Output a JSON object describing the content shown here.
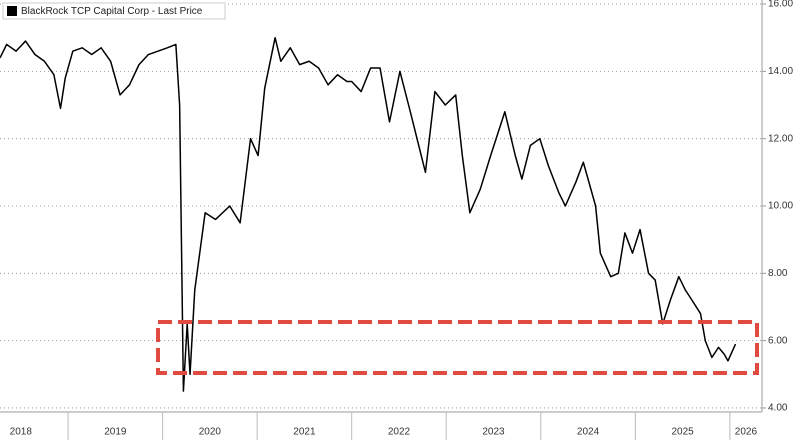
{
  "chart_data": {
    "type": "line",
    "legend": "BlackRock TCP Capital Corp - Last Price",
    "legend_position": "upper left",
    "grid": true,
    "y_axis_side": "right",
    "xlim": [
      2018.28,
      2026.34
    ],
    "ylim": [
      3.88,
      16.12
    ],
    "xticks": [
      {
        "value": 2018.5,
        "label": "2018"
      },
      {
        "value": 2019.5,
        "label": "2019"
      },
      {
        "value": 2020.5,
        "label": "2020"
      },
      {
        "value": 2021.5,
        "label": "2021"
      },
      {
        "value": 2022.5,
        "label": "2022"
      },
      {
        "value": 2023.5,
        "label": "2023"
      },
      {
        "value": 2024.5,
        "label": "2024"
      },
      {
        "value": 2025.5,
        "label": "2025"
      },
      {
        "value": 2026.17,
        "label": "2026"
      }
    ],
    "yticks": [
      {
        "value": 4,
        "label": "4.00"
      },
      {
        "value": 6,
        "label": "6.00"
      },
      {
        "value": 8,
        "label": "8.00"
      },
      {
        "value": 10,
        "label": "10.00"
      },
      {
        "value": 12,
        "label": "12.00"
      },
      {
        "value": 14,
        "label": "14.00"
      },
      {
        "value": 16,
        "label": "16.00"
      }
    ],
    "series": [
      {
        "name": "BlackRock TCP Capital Corp - Last Price",
        "color": "#000000",
        "x": [
          2018.28,
          2018.35,
          2018.45,
          2018.55,
          2018.65,
          2018.75,
          2018.85,
          2018.92,
          2018.97,
          2019.05,
          2019.15,
          2019.25,
          2019.35,
          2019.45,
          2019.55,
          2019.65,
          2019.75,
          2019.85,
          2019.95,
          2020.05,
          2020.14,
          2020.18,
          2020.22,
          2020.26,
          2020.29,
          2020.34,
          2020.45,
          2020.56,
          2020.71,
          2020.82,
          2020.93,
          2021.01,
          2021.08,
          2021.19,
          2021.25,
          2021.35,
          2021.45,
          2021.55,
          2021.65,
          2021.75,
          2021.85,
          2021.95,
          2022.0,
          2022.1,
          2022.2,
          2022.3,
          2022.4,
          2022.51,
          2022.62,
          2022.78,
          2022.88,
          2022.99,
          2023.1,
          2023.17,
          2023.25,
          2023.36,
          2023.47,
          2023.62,
          2023.73,
          2023.8,
          2023.89,
          2023.99,
          2024.08,
          2024.19,
          2024.26,
          2024.37,
          2024.45,
          2024.58,
          2024.63,
          2024.74,
          2024.82,
          2024.89,
          2024.97,
          2025.05,
          2025.14,
          2025.21,
          2025.29,
          2025.37,
          2025.46,
          2025.53,
          2025.6,
          2025.69,
          2025.74,
          2025.81,
          2025.88,
          2025.94,
          2025.98,
          2026.06
        ],
        "values": [
          14.4,
          14.8,
          14.6,
          14.9,
          14.5,
          14.3,
          13.9,
          12.9,
          13.8,
          14.6,
          14.7,
          14.5,
          14.7,
          14.3,
          13.3,
          13.6,
          14.2,
          14.5,
          14.6,
          14.7,
          14.8,
          13.0,
          4.5,
          6.5,
          5.0,
          7.5,
          9.8,
          9.6,
          10.0,
          9.5,
          12.0,
          11.5,
          13.5,
          15.0,
          14.3,
          14.7,
          14.2,
          14.3,
          14.1,
          13.6,
          13.9,
          13.7,
          13.7,
          13.4,
          14.1,
          14.1,
          12.5,
          14.0,
          12.8,
          11.0,
          13.4,
          13.0,
          13.3,
          11.5,
          9.8,
          10.5,
          11.5,
          12.8,
          11.5,
          10.8,
          11.8,
          12.0,
          11.2,
          10.4,
          10.0,
          10.7,
          11.3,
          10.0,
          8.6,
          7.9,
          8.0,
          9.2,
          8.6,
          9.3,
          8.0,
          7.8,
          6.5,
          7.2,
          7.9,
          7.5,
          7.2,
          6.8,
          6.0,
          5.5,
          5.8,
          5.6,
          5.4,
          5.9
        ]
      }
    ]
  }
}
